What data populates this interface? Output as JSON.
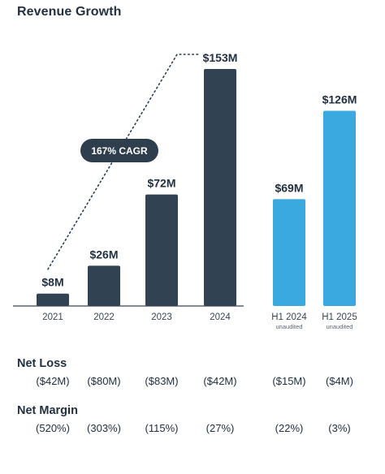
{
  "title": "Revenue Growth",
  "chart_data": {
    "type": "bar",
    "categories": [
      "2021",
      "2022",
      "2023",
      "2024",
      "H1 2024",
      "H1 2025"
    ],
    "sublabels": [
      "",
      "",
      "",
      "",
      "unaudited",
      "unaudited"
    ],
    "values": [
      8,
      26,
      72,
      153,
      69,
      126
    ],
    "value_labels": [
      "$8M",
      "$26M",
      "$72M",
      "$153M",
      "$69M",
      "$126M"
    ],
    "unit": "$M",
    "ylim": [
      0,
      160
    ],
    "grid": false,
    "legend": "none",
    "colors": [
      "#314353",
      "#314353",
      "#314353",
      "#314353",
      "#3aa9df",
      "#3aa9df"
    ],
    "annotation": {
      "text": "167% CAGR",
      "from": "2021",
      "to": "2024"
    }
  },
  "metrics": {
    "net_loss": {
      "title": "Net Loss",
      "values": [
        "($42M)",
        "($80M)",
        "($83M)",
        "($42M)",
        "($15M)",
        "($4M)"
      ]
    },
    "net_margin": {
      "title": "Net Margin",
      "values": [
        "(520%)",
        "(303%)",
        "(115%)",
        "(27%)",
        "(22%)",
        "(3%)"
      ]
    }
  },
  "colors": {
    "annual_bar": "#314353",
    "half_year_bar": "#3aa9df",
    "cagr_pill": "#2e3e4d",
    "axis": "#3a4654"
  }
}
